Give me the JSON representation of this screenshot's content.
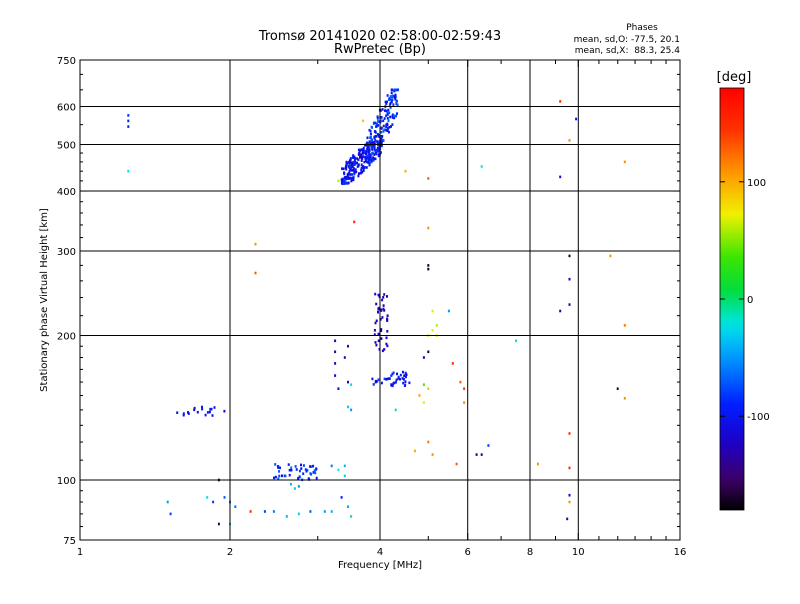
{
  "chart_data": {
    "type": "scatter",
    "title": "Tromsø 20141020 02:58:00-02:59:43",
    "subtitle": "RwPretec (Bp)",
    "xlabel": "Frequency [MHz]",
    "ylabel": "Stationary phase Virtual Height [km]",
    "x_scale": "log2",
    "y_scale": "log",
    "xlim": [
      1,
      16
    ],
    "ylim": [
      75,
      750
    ],
    "x_ticks": [
      1,
      2,
      4,
      6,
      8,
      10,
      16
    ],
    "x_tick_labels": [
      "1",
      "2",
      "4",
      "6",
      "8",
      "10",
      "16"
    ],
    "x_gridlines": [
      2,
      4,
      6,
      8,
      10
    ],
    "y_ticks": [
      75,
      100,
      200,
      300,
      400,
      500,
      600,
      750
    ],
    "y_tick_labels": [
      "75",
      "100",
      "200",
      "300",
      "400",
      "500",
      "600",
      "750"
    ],
    "y_gridlines": [
      100,
      200,
      300,
      400,
      500,
      600
    ],
    "grid": true,
    "phases_box": {
      "title": "Phases",
      "line1": "mean, sd,O: -77.5, 20.1",
      "line2": "mean, sd,X:  88.3, 25.4"
    },
    "colorbar": {
      "label": "[deg]",
      "range": [
        -180,
        180
      ],
      "ticks": [
        -100,
        0,
        100
      ],
      "tick_labels": [
        "-100",
        "0",
        "100"
      ],
      "colormap": "rainbow"
    },
    "clusters": [
      {
        "x_range": [
          3.35,
          4.05
        ],
        "y_range": [
          415,
          520
        ],
        "phase_range": [
          -125,
          -80
        ],
        "count": 260
      },
      {
        "x_range": [
          3.75,
          4.35
        ],
        "y_range": [
          460,
          650
        ],
        "phase_range": [
          -110,
          -65
        ],
        "count": 160
      },
      {
        "x_range": [
          3.9,
          4.15
        ],
        "y_range": [
          185,
          245
        ],
        "phase_range": [
          -135,
          -110
        ],
        "count": 40
      },
      {
        "x_range": [
          3.85,
          4.6
        ],
        "y_range": [
          157,
          168
        ],
        "phase_range": [
          -125,
          -75
        ],
        "count": 40
      },
      {
        "x_range": [
          2.45,
          3.05
        ],
        "y_range": [
          100,
          108
        ],
        "phase_range": [
          -110,
          -60
        ],
        "count": 45
      },
      {
        "x_range": [
          1.55,
          1.95
        ],
        "y_range": [
          136,
          142
        ],
        "phase_range": [
          -115,
          -90
        ],
        "count": 18
      }
    ],
    "points": [
      {
        "x": 1.25,
        "y": 560,
        "phase": -90
      },
      {
        "x": 1.25,
        "y": 575,
        "phase": -85
      },
      {
        "x": 1.25,
        "y": 545,
        "phase": -95
      },
      {
        "x": 1.25,
        "y": 440,
        "phase": -20
      },
      {
        "x": 2.25,
        "y": 310,
        "phase": 110
      },
      {
        "x": 2.25,
        "y": 270,
        "phase": 130
      },
      {
        "x": 3.3,
        "y": 420,
        "phase": 60
      },
      {
        "x": 3.55,
        "y": 345,
        "phase": 150
      },
      {
        "x": 3.7,
        "y": 560,
        "phase": 90
      },
      {
        "x": 4.5,
        "y": 440,
        "phase": 100
      },
      {
        "x": 5.0,
        "y": 425,
        "phase": 130
      },
      {
        "x": 5.0,
        "y": 335,
        "phase": 110
      },
      {
        "x": 5.0,
        "y": 280,
        "phase": -170
      },
      {
        "x": 5.0,
        "y": 275,
        "phase": -175
      },
      {
        "x": 6.4,
        "y": 450,
        "phase": -20
      },
      {
        "x": 9.2,
        "y": 615,
        "phase": 150
      },
      {
        "x": 9.2,
        "y": 428,
        "phase": -110
      },
      {
        "x": 9.6,
        "y": 510,
        "phase": 110
      },
      {
        "x": 9.9,
        "y": 565,
        "phase": -100
      },
      {
        "x": 9.6,
        "y": 293,
        "phase": -170
      },
      {
        "x": 9.6,
        "y": 262,
        "phase": -120
      },
      {
        "x": 9.6,
        "y": 232,
        "phase": -140
      },
      {
        "x": 9.2,
        "y": 225,
        "phase": -150
      },
      {
        "x": 11.6,
        "y": 293,
        "phase": 110
      },
      {
        "x": 12.4,
        "y": 460,
        "phase": 110
      },
      {
        "x": 12.4,
        "y": 210,
        "phase": 120
      },
      {
        "x": 5.1,
        "y": 225,
        "phase": 70
      },
      {
        "x": 5.2,
        "y": 210,
        "phase": 60
      },
      {
        "x": 5.1,
        "y": 205,
        "phase": 70
      },
      {
        "x": 5.0,
        "y": 200,
        "phase": 75
      },
      {
        "x": 5.2,
        "y": 200,
        "phase": 80
      },
      {
        "x": 5.5,
        "y": 225,
        "phase": -50
      },
      {
        "x": 5.0,
        "y": 185,
        "phase": -170
      },
      {
        "x": 4.9,
        "y": 180,
        "phase": -130
      },
      {
        "x": 5.6,
        "y": 175,
        "phase": 150
      },
      {
        "x": 5.8,
        "y": 160,
        "phase": 130
      },
      {
        "x": 5.9,
        "y": 155,
        "phase": 140
      },
      {
        "x": 5.9,
        "y": 145,
        "phase": 110
      },
      {
        "x": 4.3,
        "y": 140,
        "phase": -10
      },
      {
        "x": 4.9,
        "y": 158,
        "phase": 40
      },
      {
        "x": 5.0,
        "y": 155,
        "phase": 90
      },
      {
        "x": 4.8,
        "y": 150,
        "phase": 100
      },
      {
        "x": 4.9,
        "y": 145,
        "phase": 70
      },
      {
        "x": 5.0,
        "y": 120,
        "phase": 120
      },
      {
        "x": 4.7,
        "y": 115,
        "phase": 100
      },
      {
        "x": 5.1,
        "y": 113,
        "phase": 110
      },
      {
        "x": 5.7,
        "y": 108,
        "phase": 130
      },
      {
        "x": 6.25,
        "y": 113,
        "phase": -150
      },
      {
        "x": 6.4,
        "y": 113,
        "phase": -130
      },
      {
        "x": 6.6,
        "y": 118,
        "phase": -80
      },
      {
        "x": 7.5,
        "y": 195,
        "phase": -20
      },
      {
        "x": 8.3,
        "y": 108,
        "phase": 110
      },
      {
        "x": 9.6,
        "y": 125,
        "phase": 150
      },
      {
        "x": 9.6,
        "y": 106,
        "phase": 150
      },
      {
        "x": 9.6,
        "y": 93,
        "phase": -110
      },
      {
        "x": 9.6,
        "y": 90,
        "phase": 110
      },
      {
        "x": 9.5,
        "y": 83,
        "phase": -140
      },
      {
        "x": 12.0,
        "y": 155,
        "phase": -160
      },
      {
        "x": 12.4,
        "y": 148,
        "phase": 110
      },
      {
        "x": 3.25,
        "y": 195,
        "phase": -140
      },
      {
        "x": 3.25,
        "y": 185,
        "phase": -145
      },
      {
        "x": 3.25,
        "y": 175,
        "phase": -130
      },
      {
        "x": 3.25,
        "y": 165,
        "phase": -120
      },
      {
        "x": 3.3,
        "y": 155,
        "phase": -115
      },
      {
        "x": 3.4,
        "y": 180,
        "phase": -135
      },
      {
        "x": 3.45,
        "y": 190,
        "phase": -130
      },
      {
        "x": 3.45,
        "y": 160,
        "phase": -120
      },
      {
        "x": 3.5,
        "y": 158,
        "phase": -20
      },
      {
        "x": 3.5,
        "y": 140,
        "phase": -50
      },
      {
        "x": 3.45,
        "y": 142,
        "phase": -30
      },
      {
        "x": 3.4,
        "y": 102,
        "phase": -30
      },
      {
        "x": 3.3,
        "y": 105,
        "phase": -20
      },
      {
        "x": 3.4,
        "y": 107,
        "phase": -40
      },
      {
        "x": 3.2,
        "y": 107,
        "phase": -60
      },
      {
        "x": 3.35,
        "y": 92,
        "phase": -90
      },
      {
        "x": 3.45,
        "y": 88,
        "phase": -40
      },
      {
        "x": 3.2,
        "y": 86,
        "phase": -40
      },
      {
        "x": 3.1,
        "y": 86,
        "phase": -50
      },
      {
        "x": 3.5,
        "y": 84,
        "phase": -10
      },
      {
        "x": 2.9,
        "y": 86,
        "phase": -70
      },
      {
        "x": 2.75,
        "y": 85,
        "phase": -30
      },
      {
        "x": 2.6,
        "y": 84,
        "phase": -40
      },
      {
        "x": 2.45,
        "y": 86,
        "phase": -60
      },
      {
        "x": 2.35,
        "y": 86,
        "phase": -80
      },
      {
        "x": 2.2,
        "y": 86,
        "phase": 150
      },
      {
        "x": 2.05,
        "y": 88,
        "phase": -60
      },
      {
        "x": 2.0,
        "y": 90,
        "phase": -60
      },
      {
        "x": 2.0,
        "y": 81,
        "phase": -30
      },
      {
        "x": 1.9,
        "y": 81,
        "phase": -160
      },
      {
        "x": 1.85,
        "y": 90,
        "phase": -80
      },
      {
        "x": 1.8,
        "y": 92,
        "phase": -20
      },
      {
        "x": 1.9,
        "y": 100,
        "phase": -170
      },
      {
        "x": 1.95,
        "y": 92,
        "phase": -70
      },
      {
        "x": 1.5,
        "y": 90,
        "phase": -50
      },
      {
        "x": 1.52,
        "y": 85,
        "phase": -80
      },
      {
        "x": 2.7,
        "y": 96,
        "phase": -30
      },
      {
        "x": 2.65,
        "y": 98,
        "phase": -40
      },
      {
        "x": 2.75,
        "y": 97,
        "phase": -50
      }
    ]
  }
}
